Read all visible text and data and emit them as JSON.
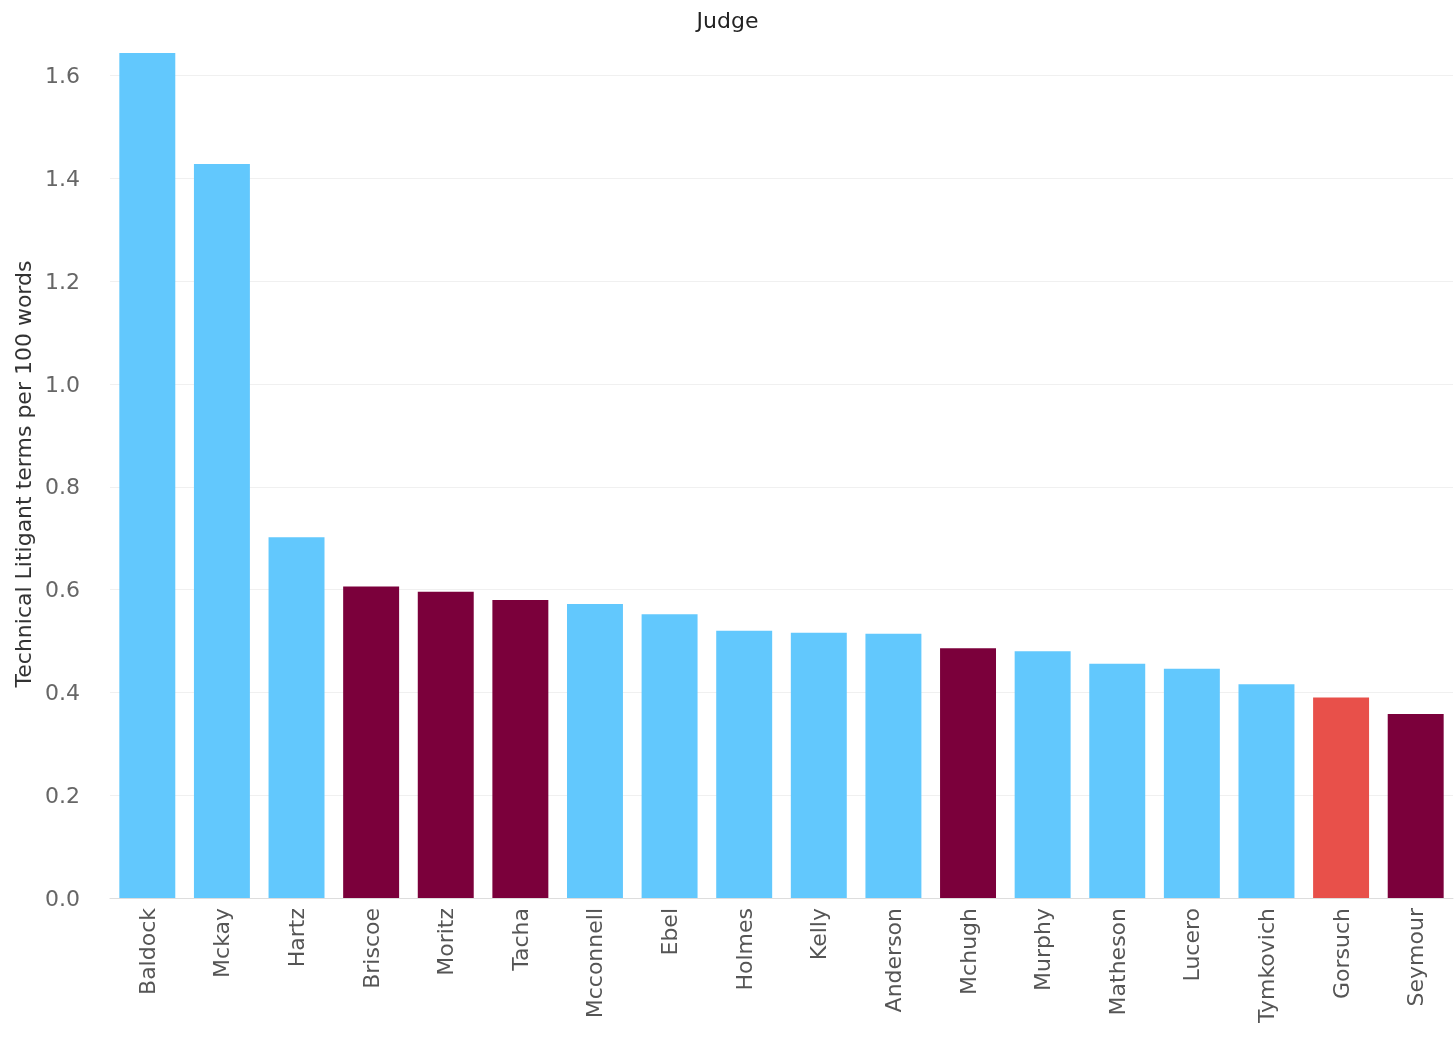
{
  "chart_data": {
    "type": "bar",
    "title": "Judge",
    "ylabel": "Technical Litigant terms per 100 words",
    "categories": [
      "Baldock",
      "Mckay",
      "Hartz",
      "Briscoe",
      "Moritz",
      "Tacha",
      "Mcconnell",
      "Ebel",
      "Holmes",
      "Kelly",
      "Anderson",
      "Mchugh",
      "Murphy",
      "Matheson",
      "Lucero",
      "Tymkovich",
      "Gorsuch",
      "Seymour"
    ],
    "values": [
      1.644,
      1.428,
      0.702,
      0.606,
      0.596,
      0.58,
      0.572,
      0.552,
      0.52,
      0.516,
      0.514,
      0.486,
      0.48,
      0.456,
      0.446,
      0.416,
      0.39,
      0.358
    ],
    "colors": [
      "#62c8fd",
      "#62c8fd",
      "#62c8fd",
      "#7b003b",
      "#7b003b",
      "#7b003b",
      "#62c8fd",
      "#62c8fd",
      "#62c8fd",
      "#62c8fd",
      "#62c8fd",
      "#7b003b",
      "#62c8fd",
      "#62c8fd",
      "#62c8fd",
      "#62c8fd",
      "#e8504a",
      "#7b003b"
    ],
    "ylim": [
      0,
      1.65
    ],
    "yticks": [
      {
        "value": 0,
        "label": "0.0"
      },
      0.2,
      0.4,
      0.6,
      0.8,
      {
        "value": 1,
        "label": "1.0"
      },
      1.2,
      1.4,
      1.6
    ],
    "grid": "y"
  }
}
